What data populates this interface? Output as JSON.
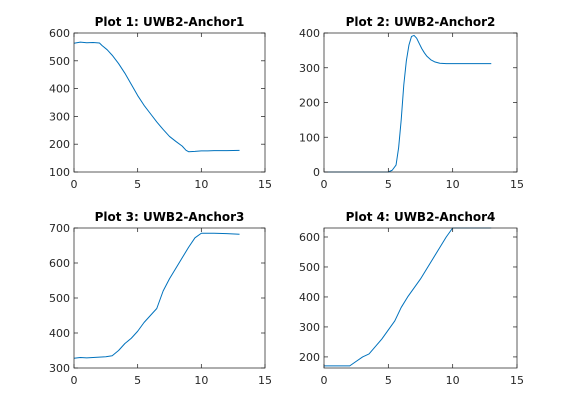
{
  "chart_data": [
    {
      "type": "line",
      "title": "Plot 1: UWB2-Anchor1",
      "xlim": [
        0,
        15
      ],
      "ylim": [
        100,
        600
      ],
      "xticks": [
        0,
        5,
        10,
        15
      ],
      "yticks": [
        100,
        200,
        300,
        400,
        500,
        600
      ],
      "series": [
        {
          "color": "#0072bd",
          "x": [
            0,
            0.5,
            0.8,
            1,
            1.5,
            2,
            2.2,
            2.6,
            3,
            3.5,
            4,
            4.5,
            5,
            5.5,
            6,
            6.5,
            7,
            7.5,
            8,
            8.5,
            8.8,
            9,
            9.5,
            10,
            10.5,
            11,
            12,
            13
          ],
          "y": [
            563,
            567,
            566,
            565,
            566,
            564,
            555,
            540,
            520,
            490,
            455,
            415,
            375,
            340,
            310,
            280,
            253,
            228,
            210,
            193,
            178,
            173,
            174,
            176,
            176,
            177,
            177,
            178
          ]
        }
      ]
    },
    {
      "type": "line",
      "title": "Plot 2: UWB2-Anchor2",
      "xlim": [
        0,
        15
      ],
      "ylim": [
        0,
        400
      ],
      "xticks": [
        0,
        5,
        10,
        15
      ],
      "yticks": [
        0,
        100,
        200,
        300,
        400
      ],
      "series": [
        {
          "color": "#0072bd",
          "x": [
            0,
            1,
            2,
            3,
            4,
            5,
            5.3,
            5.6,
            5.8,
            6.0,
            6.2,
            6.4,
            6.6,
            6.8,
            7.0,
            7.2,
            7.4,
            7.6,
            7.8,
            8.0,
            8.3,
            8.6,
            9,
            9.5,
            10,
            11,
            12,
            13
          ],
          "y": [
            0,
            0,
            0,
            0,
            0,
            0,
            5,
            20,
            70,
            150,
            250,
            320,
            365,
            390,
            393,
            385,
            370,
            355,
            343,
            333,
            323,
            317,
            313,
            312,
            312,
            312,
            312,
            312
          ]
        }
      ]
    },
    {
      "type": "line",
      "title": "Plot 3: UWB2-Anchor3",
      "xlim": [
        0,
        15
      ],
      "ylim": [
        300,
        700
      ],
      "xticks": [
        0,
        5,
        10,
        15
      ],
      "yticks": [
        300,
        400,
        500,
        600,
        700
      ],
      "series": [
        {
          "color": "#0072bd",
          "x": [
            0,
            0.5,
            1,
            1.5,
            2,
            2.5,
            3,
            3.5,
            4,
            4.5,
            5,
            5.5,
            6,
            6.5,
            7,
            7.5,
            8,
            8.5,
            9,
            9.5,
            10,
            10.5,
            11,
            12,
            13
          ],
          "y": [
            328,
            330,
            329,
            330,
            331,
            332,
            335,
            350,
            370,
            385,
            405,
            430,
            450,
            470,
            520,
            555,
            585,
            615,
            645,
            672,
            685,
            685,
            685,
            684,
            682
          ]
        }
      ]
    },
    {
      "type": "line",
      "title": "Plot 4: UWB2-Anchor4",
      "xlim": [
        0,
        15
      ],
      "ylim": [
        163,
        630
      ],
      "xticks": [
        0,
        5,
        10,
        15
      ],
      "yticks": [
        200,
        300,
        400,
        500,
        600
      ],
      "series": [
        {
          "color": "#0072bd",
          "x": [
            0,
            0.5,
            1,
            1.5,
            2,
            2.5,
            3,
            3.5,
            4,
            4.5,
            5,
            5.5,
            6,
            6.5,
            7,
            7.5,
            8,
            8.5,
            9,
            9.5,
            10,
            10.5,
            11,
            12,
            13
          ],
          "y": [
            170,
            170,
            170,
            170,
            170,
            185,
            200,
            210,
            235,
            260,
            290,
            320,
            365,
            400,
            430,
            460,
            495,
            530,
            565,
            600,
            630,
            630,
            630,
            630,
            630
          ]
        }
      ]
    }
  ]
}
